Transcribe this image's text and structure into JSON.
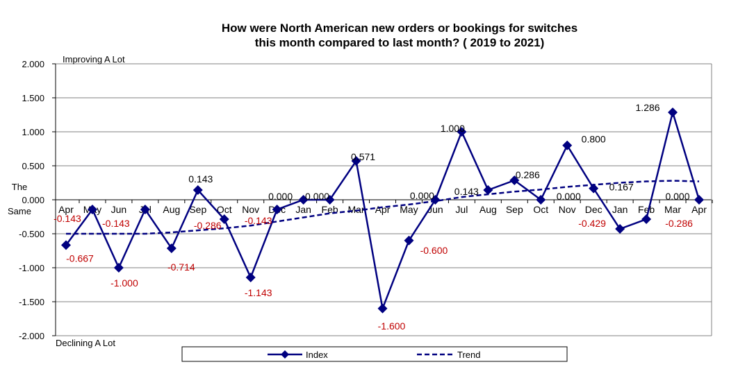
{
  "chart_data": {
    "type": "line",
    "title_lines": [
      "How were North American new orders or bookings for switches",
      "this month compared to last month? ( 2019 to  2021)"
    ],
    "categories": [
      "Apr",
      "May",
      "Jun",
      "Jul",
      "Aug",
      "Sep",
      "Oct",
      "Nov",
      "Dec",
      "Jan",
      "Feb",
      "Mar",
      "Apr",
      "May",
      "Jun",
      "Jul",
      "Aug",
      "Sep",
      "Oct",
      "Nov",
      "Dec",
      "Jan",
      "Feb",
      "Mar",
      "Apr"
    ],
    "series": [
      {
        "name": "Index",
        "style": "solid-diamond",
        "color": "#000080",
        "values": [
          -0.667,
          -0.143,
          -1.0,
          -0.143,
          -0.714,
          0.143,
          -0.286,
          -1.143,
          -0.143,
          0.0,
          0.0,
          0.571,
          -1.6,
          -0.6,
          0.0,
          1.0,
          0.143,
          0.286,
          0.0,
          0.8,
          0.167,
          -0.429,
          -0.286,
          1.286,
          0.0
        ],
        "labels": [
          "-0.667",
          "-0.143",
          "-1.000",
          "-0.143",
          "-0.714",
          "0.143",
          "-0.286",
          "-1.143",
          "-0.143",
          "0.000",
          "0.000",
          "0.571",
          "-1.600",
          "-0.600",
          "0.000",
          "1.000",
          "0.143",
          "0.286",
          "0.000",
          "0.800",
          "0.167",
          "-0.429",
          "-0.286",
          "1.286",
          "0.000"
        ]
      },
      {
        "name": "Trend",
        "style": "dashed",
        "color": "#000080",
        "values": [
          -0.5,
          -0.5,
          -0.5,
          -0.5,
          -0.48,
          -0.45,
          -0.42,
          -0.38,
          -0.32,
          -0.26,
          -0.2,
          -0.16,
          -0.11,
          -0.07,
          -0.02,
          0.04,
          0.08,
          0.12,
          0.15,
          0.19,
          0.22,
          0.25,
          0.27,
          0.28,
          0.27
        ]
      }
    ],
    "ylim": [
      -2,
      2
    ],
    "yticks": [
      "2.000",
      "1.500",
      "1.000",
      "0.500",
      "0.000",
      "-0.500",
      "-1.000",
      "-1.500",
      "-2.000"
    ],
    "y_annotations": {
      "top": "Improving A Lot",
      "middle_line1": "The",
      "middle_line2": "Same",
      "bottom": "Declining A Lot"
    },
    "grid": true,
    "legend_position": "bottom",
    "positive_label_color": "#000000",
    "negative_label_color": "#c00000"
  }
}
